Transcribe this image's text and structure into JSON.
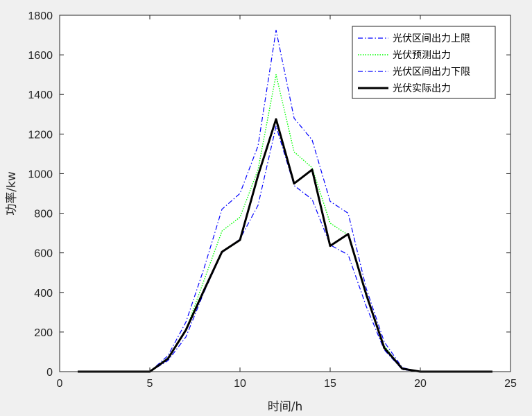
{
  "chart_data": {
    "type": "line",
    "xlabel": "时间/h",
    "ylabel": "功率/kw",
    "xlim": [
      0,
      25
    ],
    "ylim": [
      0,
      1800
    ],
    "xticks": [
      0,
      5,
      10,
      15,
      20,
      25
    ],
    "yticks": [
      0,
      200,
      400,
      600,
      800,
      1000,
      1200,
      1400,
      1600,
      1800
    ],
    "grid": false,
    "legend_position": "top-right",
    "x": [
      1,
      2,
      3,
      4,
      5,
      6,
      7,
      8,
      9,
      10,
      11,
      12,
      13,
      14,
      15,
      16,
      17,
      18,
      19,
      20,
      21,
      22,
      23,
      24
    ],
    "series": [
      {
        "name": "光伏区间出力上限",
        "color": "#0000ff",
        "dash": "dashdot",
        "values": [
          0,
          0,
          0,
          0,
          0,
          80,
          250,
          520,
          820,
          900,
          1140,
          1725,
          1280,
          1170,
          860,
          800,
          420,
          150,
          20,
          0,
          0,
          0,
          0,
          0
        ]
      },
      {
        "name": "光伏预测出力",
        "color": "#00ff00",
        "dash": "dotted",
        "values": [
          0,
          0,
          0,
          0,
          0,
          70,
          210,
          460,
          710,
          780,
          1020,
          1500,
          1110,
          1030,
          750,
          690,
          380,
          130,
          15,
          0,
          0,
          0,
          0,
          0
        ]
      },
      {
        "name": "光伏区间出力下限",
        "color": "#0000ff",
        "dash": "dashdot",
        "values": [
          0,
          0,
          0,
          0,
          0,
          55,
          175,
          400,
          600,
          670,
          840,
          1240,
          940,
          870,
          640,
          590,
          330,
          110,
          10,
          0,
          0,
          0,
          0,
          0
        ]
      },
      {
        "name": "光伏实际出力",
        "color": "#000000",
        "dash": "solid",
        "values": [
          0,
          0,
          0,
          0,
          0,
          65,
          210,
          410,
          605,
          665,
          990,
          1275,
          950,
          1020,
          635,
          695,
          390,
          120,
          15,
          0,
          0,
          0,
          0,
          0
        ]
      }
    ]
  }
}
